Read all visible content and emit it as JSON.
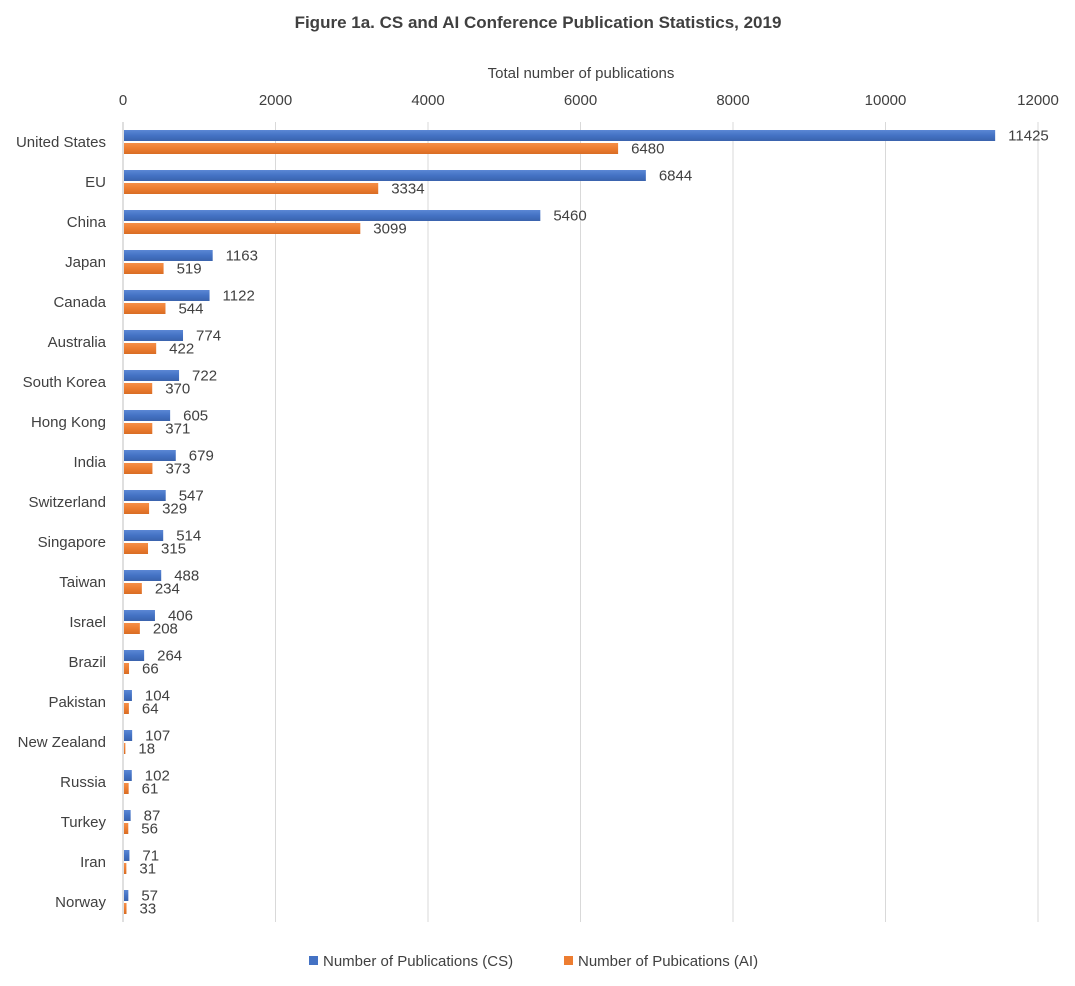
{
  "chart_data": {
    "type": "bar",
    "orientation": "horizontal",
    "title": "Figure 1a. CS and AI Conference Publication Statistics, 2019",
    "xlabel": "Total number of publications",
    "xlim": [
      0,
      12000
    ],
    "xticks": [
      "0",
      "2000",
      "4000",
      "6000",
      "8000",
      "10000",
      "12000"
    ],
    "xtick_values": [
      0,
      2000,
      4000,
      6000,
      8000,
      10000,
      12000
    ],
    "x_axis_position": "top",
    "grid": "vertical",
    "legend_position": "bottom",
    "categories": [
      "United States",
      "EU",
      "China",
      "Japan",
      "Canada",
      "Australia",
      "South Korea",
      "Hong Kong",
      "India",
      "Switzerland",
      "Singapore",
      "Taiwan",
      "Israel",
      "Brazil",
      "Pakistan",
      "New Zealand",
      "Russia",
      "Turkey",
      "Iran",
      "Norway"
    ],
    "series": [
      {
        "name": "Number of Publications (CS)",
        "color": "#4472c4",
        "values": [
          11425,
          6844,
          5460,
          1163,
          1122,
          774,
          722,
          605,
          679,
          547,
          514,
          488,
          406,
          264,
          104,
          107,
          102,
          87,
          71,
          57
        ]
      },
      {
        "name": "Number of Pubications (AI)",
        "color": "#ed7d31",
        "values": [
          6480,
          3334,
          3099,
          519,
          544,
          422,
          370,
          371,
          373,
          329,
          315,
          234,
          208,
          66,
          64,
          18,
          61,
          56,
          31,
          33
        ]
      }
    ]
  }
}
